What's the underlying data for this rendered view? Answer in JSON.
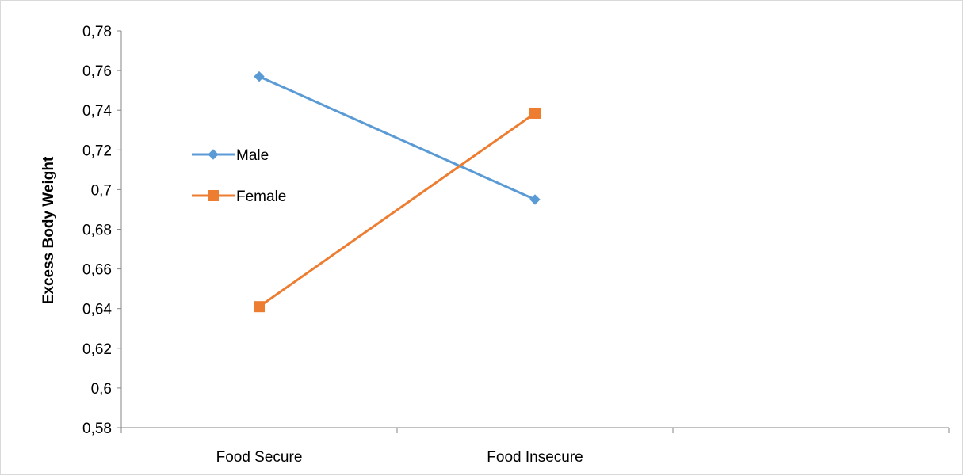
{
  "chart_data": {
    "type": "line",
    "title": "",
    "xlabel": "",
    "ylabel": "Excess Body Weight",
    "categories": [
      "Food Secure",
      "Food Insecure"
    ],
    "category_slots": 3,
    "ylim": [
      0.58,
      0.78
    ],
    "ytick_step": 0.02,
    "y_ticks": [
      "0,58",
      "0,6",
      "0,62",
      "0,64",
      "0,66",
      "0,68",
      "0,7",
      "0,72",
      "0,74",
      "0,76",
      "0,78"
    ],
    "grid": false,
    "legend": {
      "placement": "left-inside"
    },
    "series": [
      {
        "name": "Male",
        "values": [
          0.757,
          0.695
        ],
        "color": "#5b9bd5",
        "marker": "diamond"
      },
      {
        "name": "Female",
        "values": [
          0.641,
          0.7385
        ],
        "color": "#ed7d31",
        "marker": "square"
      }
    ]
  }
}
